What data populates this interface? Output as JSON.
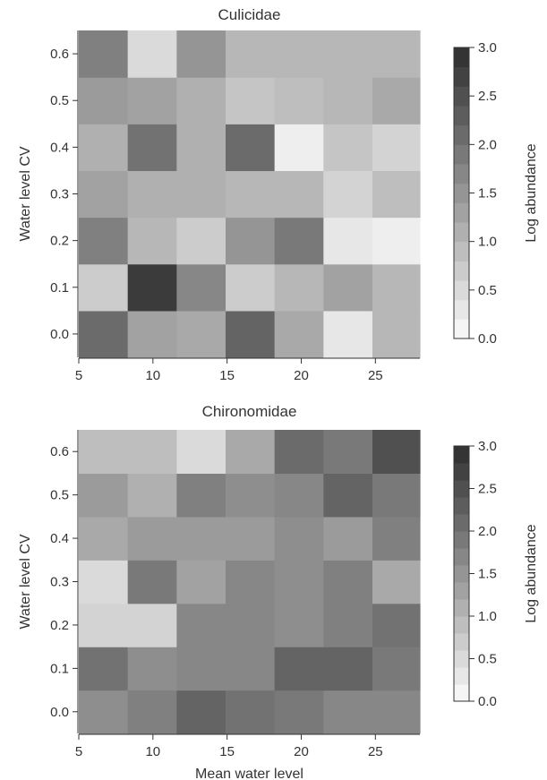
{
  "chart_data": [
    {
      "type": "heatmap",
      "title": "Culicidae",
      "xlabel": "",
      "ylabel": "Water level CV",
      "colorbar_label": "Log abundance",
      "x_ticks": [
        "5",
        "10",
        "15",
        "20",
        "25"
      ],
      "y_ticks": [
        "0.0",
        "0.1",
        "0.2",
        "0.3",
        "0.4",
        "0.5",
        "0.6"
      ],
      "colorbar_ticks": [
        "0.0",
        "0.5",
        "1.0",
        "1.5",
        "2.0",
        "2.5",
        "3.0"
      ],
      "xlim": [
        5,
        28
      ],
      "ylim": [
        -0.05,
        0.65
      ],
      "zlim": [
        0,
        3
      ],
      "x_bins": [
        5.0,
        8.3,
        11.6,
        14.9,
        18.2,
        21.5,
        24.8,
        28.0
      ],
      "y_centers": [
        0.0,
        0.1,
        0.2,
        0.3,
        0.4,
        0.5,
        0.6
      ],
      "values": [
        [
          2.1,
          1.3,
          1.2,
          2.2,
          1.2,
          0.3,
          1.0
        ],
        [
          0.7,
          2.8,
          1.7,
          0.7,
          1.0,
          1.3,
          1.0
        ],
        [
          1.8,
          1.0,
          0.7,
          1.5,
          1.9,
          0.3,
          0.2
        ],
        [
          1.3,
          1.1,
          1.1,
          1.0,
          1.0,
          0.6,
          0.9
        ],
        [
          1.1,
          2.0,
          1.1,
          2.1,
          0.2,
          0.8,
          0.6
        ],
        [
          1.4,
          1.3,
          1.1,
          0.8,
          0.9,
          1.0,
          1.2
        ],
        [
          1.8,
          0.5,
          1.5,
          1.0,
          1.0,
          1.0,
          1.0
        ]
      ]
    },
    {
      "type": "heatmap",
      "title": "Chironomidae",
      "xlabel": "Mean water level",
      "ylabel": "Water level CV",
      "colorbar_label": "Log abundance",
      "x_ticks": [
        "5",
        "10",
        "15",
        "20",
        "25"
      ],
      "y_ticks": [
        "0.0",
        "0.1",
        "0.2",
        "0.3",
        "0.4",
        "0.5",
        "0.6"
      ],
      "colorbar_ticks": [
        "0.0",
        "0.5",
        "1.0",
        "1.5",
        "2.0",
        "2.5",
        "3.0"
      ],
      "xlim": [
        5,
        28
      ],
      "ylim": [
        -0.05,
        0.65
      ],
      "zlim": [
        0,
        3
      ],
      "x_bins": [
        5.0,
        8.3,
        11.6,
        14.9,
        18.2,
        21.5,
        24.8,
        28.0
      ],
      "y_centers": [
        0.0,
        0.1,
        0.2,
        0.3,
        0.4,
        0.5,
        0.6
      ],
      "values": [
        [
          1.6,
          1.8,
          2.2,
          2.0,
          1.9,
          1.7,
          1.7
        ],
        [
          2.0,
          1.6,
          1.7,
          1.7,
          2.2,
          2.2,
          1.9
        ],
        [
          0.6,
          0.6,
          1.7,
          1.7,
          1.6,
          1.8,
          2.0
        ],
        [
          0.5,
          1.9,
          1.3,
          1.7,
          1.6,
          1.8,
          1.2
        ],
        [
          1.2,
          1.4,
          1.4,
          1.4,
          1.6,
          1.4,
          1.8
        ],
        [
          1.4,
          1.1,
          1.8,
          1.6,
          1.7,
          2.2,
          1.9
        ],
        [
          0.9,
          0.9,
          0.5,
          1.2,
          2.1,
          1.9,
          2.5
        ]
      ]
    }
  ]
}
